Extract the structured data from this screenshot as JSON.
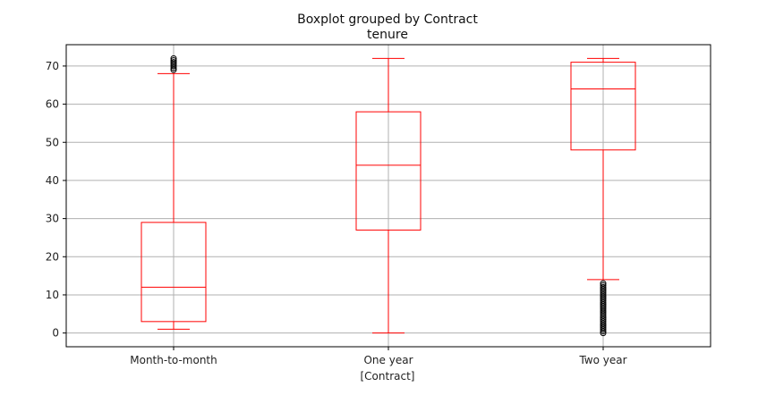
{
  "chart_data": {
    "type": "boxplot",
    "suptitle": "Boxplot grouped by Contract",
    "title": "tenure",
    "xlabel": "[Contract]",
    "ylabel": "",
    "ylim": [
      -3.6,
      75.6
    ],
    "yticks": [
      0,
      10,
      20,
      30,
      40,
      50,
      60,
      70
    ],
    "grid": true,
    "categories": [
      "Month-to-month",
      "One year",
      "Two year"
    ],
    "boxes": [
      {
        "category": "Month-to-month",
        "whislo": 1,
        "q1": 3,
        "median": 12,
        "q3": 29,
        "whishi": 68,
        "fliers": [
          69,
          69.5,
          70,
          70.5,
          71,
          71.5,
          72
        ]
      },
      {
        "category": "One year",
        "whislo": 0,
        "q1": 27,
        "median": 44,
        "q3": 58,
        "whishi": 72,
        "fliers": []
      },
      {
        "category": "Two year",
        "whislo": 14,
        "q1": 48,
        "median": 64,
        "q3": 71,
        "whishi": 72,
        "fliers": [
          0,
          0.5,
          1,
          1.5,
          2,
          2.5,
          3,
          3.5,
          4,
          4.5,
          5,
          5.5,
          6,
          6.5,
          7,
          7.5,
          8,
          8.5,
          9,
          9.5,
          10,
          10.5,
          11,
          11.5,
          12,
          12.5,
          13
        ]
      }
    ],
    "colors": {
      "box": "#ff0000",
      "grid": "#b0b0b0",
      "axes": "#000000",
      "flier_edge": "#000000"
    }
  }
}
